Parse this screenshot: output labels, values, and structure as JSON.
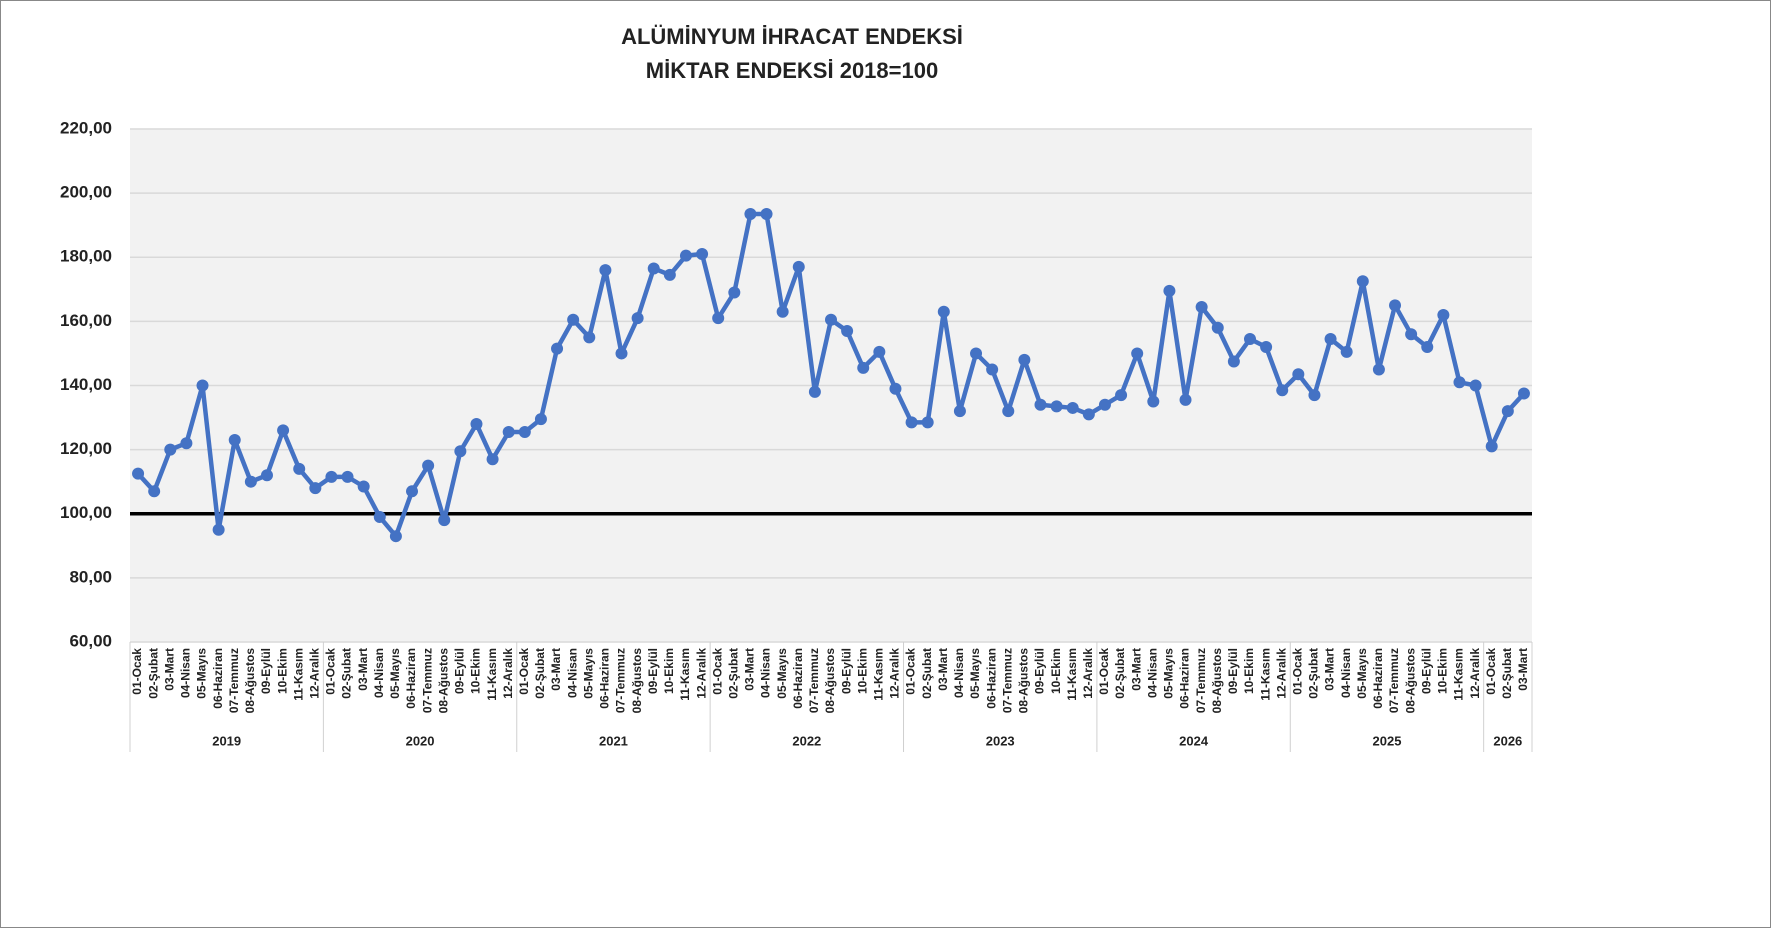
{
  "chart_data": {
    "type": "line",
    "title": "ALÜMİNYUM İHRACAT ENDEKSİ",
    "subtitle": "MİKTAR ENDEKSİ 2018=100",
    "groups": [
      {
        "label": "2019",
        "categories": [
          "01-Ocak",
          "02-Şubat",
          "03-Mart",
          "04-Nisan",
          "05-Mayıs",
          "06-Haziran",
          "07-Temmuz",
          "08-Ağustos",
          "09-Eylül",
          "10-Ekim",
          "11-Kasım",
          "12-Aralık"
        ]
      },
      {
        "label": "2020",
        "categories": [
          "01-Ocak",
          "02-Şubat",
          "03-Mart",
          "04-Nisan",
          "05-Mayıs",
          "06-Haziran",
          "07-Temmuz",
          "08-Ağustos",
          "09-Eylül",
          "10-Ekim",
          "11-Kasım",
          "12-Aralık"
        ]
      },
      {
        "label": "2021",
        "categories": [
          "01-Ocak",
          "02-Şubat",
          "03-Mart",
          "04-Nisan",
          "05-Mayıs",
          "06-Haziran",
          "07-Temmuz",
          "08-Ağustos",
          "09-Eylül",
          "10-Ekim",
          "11-Kasım",
          "12-Aralık"
        ]
      },
      {
        "label": "2022",
        "categories": [
          "01-Ocak",
          "02-Şubat",
          "03-Mart",
          "04-Nisan",
          "05-Mayıs",
          "06-Haziran",
          "07-Temmuz",
          "08-Ağustos",
          "09-Eylül",
          "10-Ekim",
          "11-Kasım",
          "12-Aralık"
        ]
      },
      {
        "label": "2023",
        "categories": [
          "01-Ocak",
          "02-Şubat",
          "03-Mart",
          "04-Nisan",
          "05-Mayıs",
          "06-Haziran",
          "07-Temmuz",
          "08-Ağustos",
          "09-Eylül",
          "10-Ekim",
          "11-Kasım",
          "12-Aralık"
        ]
      },
      {
        "label": "2024",
        "categories": [
          "01-Ocak",
          "02-Şubat",
          "03-Mart",
          "04-Nisan",
          "05-Mayıs",
          "06-Haziran",
          "07-Temmuz",
          "08-Ağustos",
          "09-Eylül",
          "10-Ekim",
          "11-Kasım",
          "12-Aralık"
        ]
      },
      {
        "label": "2025",
        "categories": [
          "01-Ocak",
          "02-Şubat",
          "03-Mart",
          "04-Nisan",
          "05-Mayıs",
          "06-Haziran",
          "07-Temmuz",
          "08-Ağustos",
          "09-Eylül",
          "10-Ekim",
          "11-Kasım",
          "12-Aralık"
        ]
      },
      {
        "label": "2026",
        "categories": [
          "01-Ocak",
          "02-Şubat",
          "03-Mart"
        ]
      }
    ],
    "values": [
      112.5,
      107,
      120,
      122,
      140,
      95,
      123,
      110,
      112,
      126,
      114,
      108,
      111.5,
      111.5,
      108.5,
      99,
      93,
      107,
      115,
      98,
      119.5,
      128,
      117,
      125.5,
      125.5,
      129.5,
      151.5,
      160.5,
      155,
      176,
      150,
      161,
      176.5,
      174.5,
      180.5,
      181,
      161,
      169,
      193.5,
      193.5,
      163,
      177,
      138,
      160.5,
      157,
      145.5,
      150.5,
      139,
      128.5,
      128.5,
      163,
      132,
      150,
      145,
      132,
      148,
      134,
      133.5,
      133,
      131,
      134,
      137,
      150,
      135,
      169.5,
      135.5,
      164.5,
      158,
      147.5,
      154.5,
      152,
      138.5,
      143.5,
      137,
      154.5,
      150.5,
      172.5,
      145,
      165,
      156,
      152,
      162,
      141,
      140,
      121,
      132,
      137.5
    ],
    "color": "#4472c4",
    "reference_line": 100,
    "ylim": [
      60,
      220
    ],
    "yticks": [
      {
        "value": 60,
        "label": "60,00"
      },
      {
        "value": 80,
        "label": "80,00"
      },
      {
        "value": 100,
        "label": "100,00"
      },
      {
        "value": 120,
        "label": "120,00"
      },
      {
        "value": 140,
        "label": "140,00"
      },
      {
        "value": 160,
        "label": "160,00"
      },
      {
        "value": 180,
        "label": "180,00"
      },
      {
        "value": 200,
        "label": "200,00"
      },
      {
        "value": 220,
        "label": "220,00"
      }
    ],
    "grid": true
  }
}
